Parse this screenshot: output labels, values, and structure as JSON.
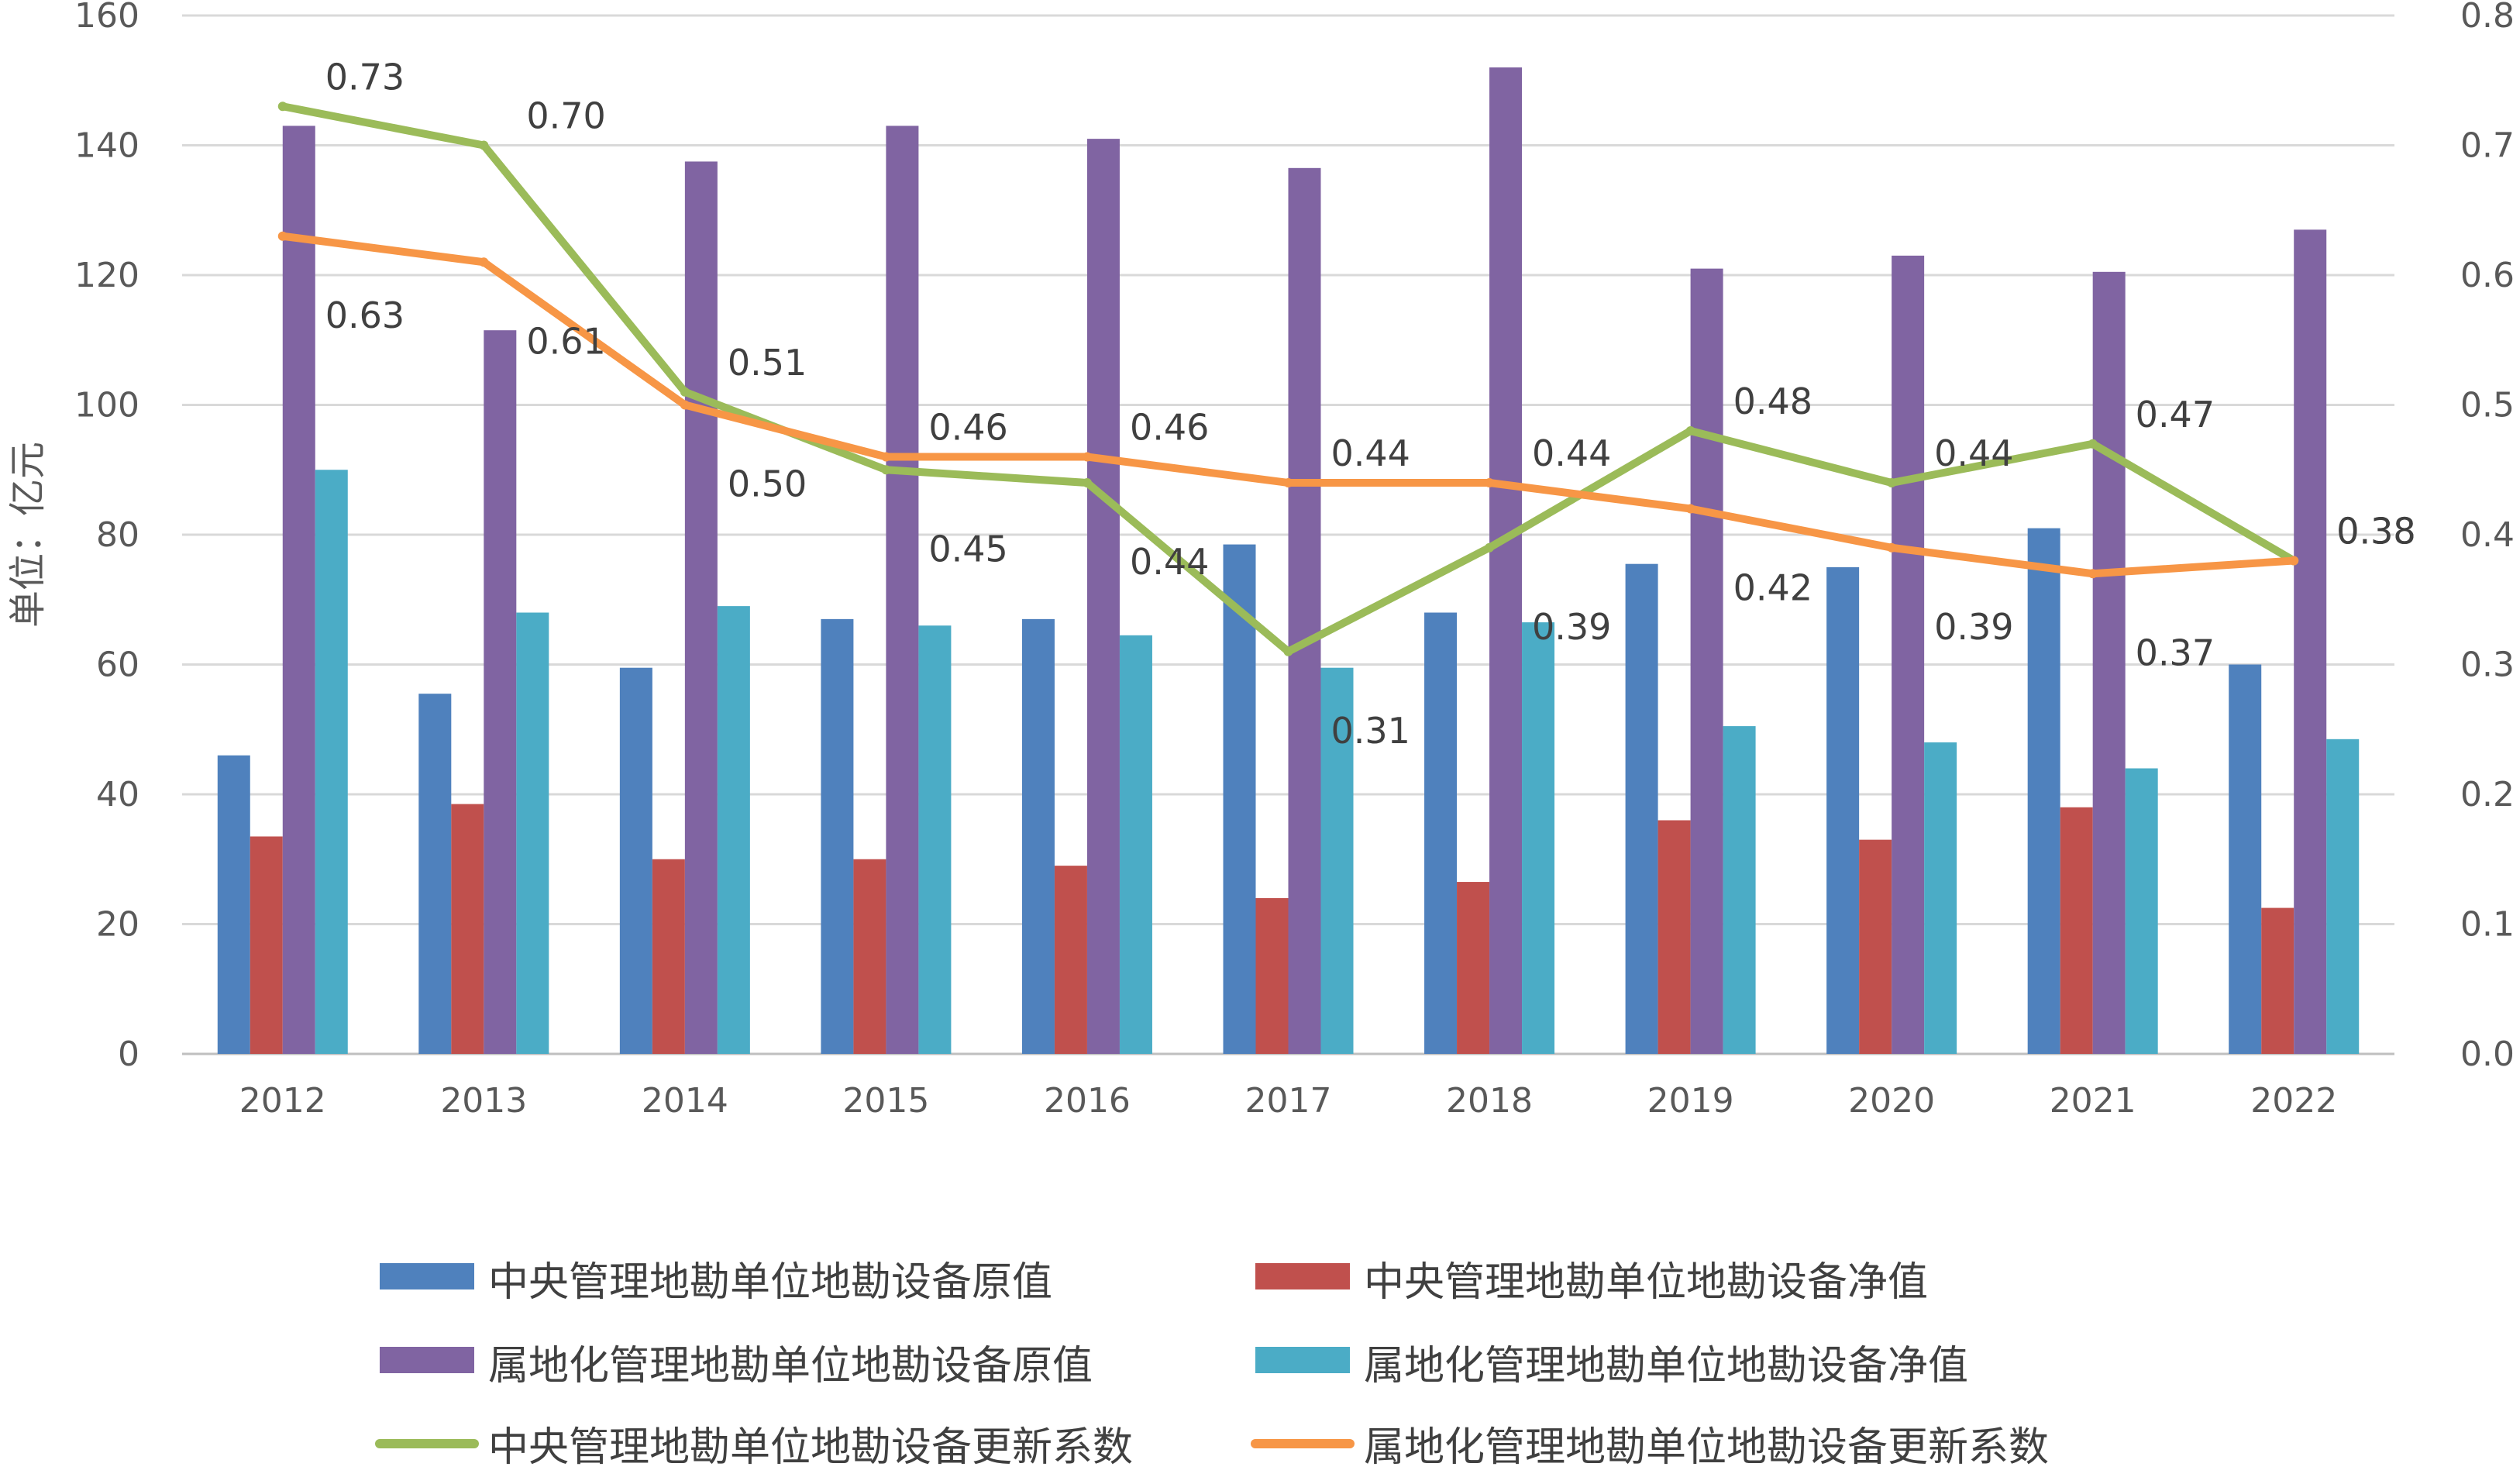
{
  "chart_data": {
    "type": "bar",
    "categories": [
      "2012",
      "2013",
      "2014",
      "2015",
      "2016",
      "2017",
      "2018",
      "2019",
      "2020",
      "2021",
      "2022"
    ],
    "ylabel": "单位：亿元",
    "ylim": [
      0,
      160
    ],
    "y_ticks": [
      "0",
      "20",
      "40",
      "60",
      "80",
      "100",
      "120",
      "140",
      "160"
    ],
    "y2lim": [
      0,
      0.8
    ],
    "y2_ticks": [
      "0.00",
      "0.10",
      "0.20",
      "0.30",
      "0.40",
      "0.50",
      "0.60",
      "0.70",
      "0.80"
    ],
    "grid": true,
    "legend_position": "bottom",
    "bar_series": [
      {
        "name": "中央管理地勘单位地勘设备原值",
        "color": "#4F81BD",
        "values": [
          46,
          55.5,
          59.5,
          67,
          67,
          78.5,
          68,
          75.5,
          75,
          81,
          60
        ]
      },
      {
        "name": "中央管理地勘单位地勘设备净值",
        "color": "#C0504D",
        "values": [
          33.5,
          38.5,
          30,
          30,
          29,
          24,
          26.5,
          36,
          33,
          38,
          22.5
        ]
      },
      {
        "name": "属地化管理地勘单位地勘设备原值",
        "color": "#8064A2",
        "values": [
          143,
          111.5,
          137.5,
          143,
          141,
          136.5,
          152,
          121,
          123,
          120.5,
          127
        ]
      },
      {
        "name": "属地化管理地勘单位地勘设备净值",
        "color": "#4BACC6",
        "values": [
          90,
          68,
          69,
          66,
          64.5,
          59.5,
          66.5,
          50.5,
          48,
          44,
          48.5
        ]
      }
    ],
    "line_series": [
      {
        "name": "中央管理地勘单位地勘设备更新系数",
        "color": "#9BBB59",
        "axis": "right",
        "values": [
          0.73,
          0.7,
          0.51,
          0.45,
          0.44,
          0.31,
          0.39,
          0.48,
          0.44,
          0.47,
          0.38
        ],
        "labels": [
          "0.73",
          "0.70",
          "0.51",
          "0.45",
          "0.44",
          "0.31",
          "0.39",
          "0.48",
          "0.44",
          "0.47",
          "0.38"
        ]
      },
      {
        "name": "属地化管理地勘单位地勘设备更新系数",
        "color": "#F79646",
        "axis": "right",
        "values": [
          0.63,
          0.61,
          0.5,
          0.46,
          0.46,
          0.44,
          0.44,
          0.42,
          0.39,
          0.37,
          0.38
        ],
        "labels": [
          "0.63",
          "0.61",
          "0.50",
          "0.46",
          "0.46",
          "0.44",
          "0.44",
          "0.42",
          "0.39",
          "0.37",
          "0.38"
        ]
      }
    ]
  }
}
